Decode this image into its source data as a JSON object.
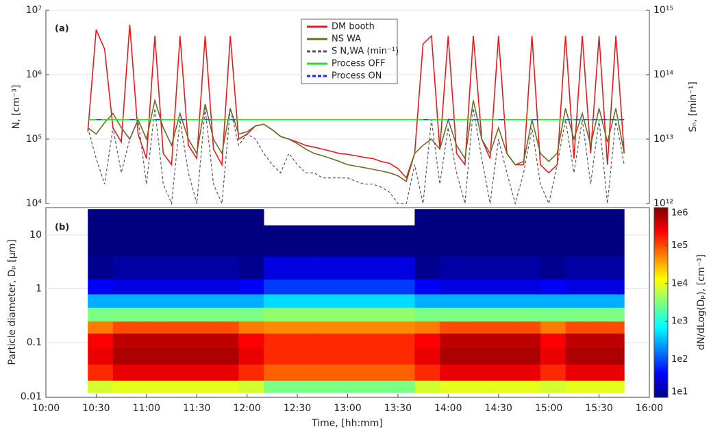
{
  "chart_data": [
    {
      "type": "line",
      "label": "(a)",
      "ylabel": "N, [cm⁻³]",
      "y2label": "Sₙ, [min⁻¹]",
      "log_y": true,
      "grid": true,
      "legend": "upper center",
      "xlim": [
        600,
        960
      ],
      "ylim": [
        10000,
        10000000
      ],
      "yticks": [
        {
          "value": 10000,
          "label": "10⁴"
        },
        {
          "value": 100000,
          "label": "10⁵"
        },
        {
          "value": 1000000,
          "label": "10⁶"
        },
        {
          "value": 10000000,
          "label": "10⁷"
        }
      ],
      "y2lim": [
        1000000000000.0,
        1000000000000000.0
      ],
      "y2ticks": [
        {
          "value": 1000000000000.0,
          "label": "10¹²"
        },
        {
          "value": 10000000000000.0,
          "label": "10¹³"
        },
        {
          "value": 100000000000000.0,
          "label": "10¹⁴"
        },
        {
          "value": 1000000000000000.0,
          "label": "10¹⁵"
        }
      ],
      "x": [
        625,
        630,
        635,
        640,
        645,
        650,
        655,
        660,
        665,
        670,
        675,
        680,
        685,
        690,
        695,
        700,
        705,
        710,
        715,
        720,
        725,
        730,
        735,
        740,
        745,
        750,
        755,
        760,
        765,
        770,
        775,
        780,
        785,
        790,
        795,
        800,
        805,
        810,
        815,
        820,
        825,
        830,
        835,
        840,
        845,
        850,
        855,
        860,
        865,
        870,
        875,
        880,
        885,
        890,
        895,
        900,
        905,
        910,
        915,
        920,
        925,
        930,
        935,
        940,
        945
      ],
      "series": [
        {
          "name": "DM booth",
          "color": "#e8191c",
          "values": [
            130000,
            5000000,
            2500000,
            150000,
            90000,
            6000000,
            120000,
            50000,
            4000000,
            60000,
            40000,
            4000000,
            80000,
            50000,
            4000000,
            70000,
            40000,
            4000000,
            100000,
            120000,
            160000,
            170000,
            140000,
            110000,
            100000,
            90000,
            80000,
            75000,
            70000,
            65000,
            60000,
            58000,
            55000,
            52000,
            50000,
            45000,
            42000,
            35000,
            25000,
            60000,
            3000000,
            4000000,
            70000,
            4000000,
            60000,
            40000,
            4000000,
            100000,
            50000,
            4000000,
            60000,
            40000,
            40000,
            4000000,
            40000,
            30000,
            40000,
            4000000,
            50000,
            4000000,
            60000,
            4000000,
            40000,
            4000000,
            60000
          ]
        },
        {
          "name": "NS WA",
          "color": "#6b6b2a",
          "values": [
            150000,
            120000,
            180000,
            250000,
            150000,
            100000,
            200000,
            100000,
            400000,
            150000,
            80000,
            250000,
            100000,
            60000,
            350000,
            100000,
            60000,
            300000,
            120000,
            130000,
            160000,
            170000,
            140000,
            110000,
            100000,
            85000,
            70000,
            60000,
            55000,
            50000,
            45000,
            40000,
            38000,
            36000,
            34000,
            32000,
            30000,
            27000,
            22000,
            60000,
            80000,
            100000,
            70000,
            200000,
            80000,
            50000,
            400000,
            100000,
            60000,
            150000,
            60000,
            40000,
            45000,
            200000,
            60000,
            45000,
            60000,
            300000,
            100000,
            250000,
            80000,
            300000,
            90000,
            300000,
            60000
          ]
        },
        {
          "name": "S N,WA (min⁻¹)",
          "color": "#555555",
          "dash": true,
          "axis": "y2",
          "values": [
            15000000000000.0,
            5000000000000.0,
            2000000000000.0,
            15000000000000.0,
            3000000000000.0,
            10000000000000.0,
            20000000000000.0,
            2000000000000.0,
            30000000000000.0,
            2000000000000.0,
            1000000000000.0,
            20000000000000.0,
            3000000000000.0,
            1000000000000.0,
            30000000000000.0,
            2000000000000.0,
            1000000000000.0,
            30000000000000.0,
            8000000000000.0,
            12000000000000.0,
            10000000000000.0,
            6000000000000.0,
            4000000000000.0,
            3000000000000.0,
            6000000000000.0,
            4000000000000.0,
            3000000000000.0,
            3000000000000.0,
            2500000000000.0,
            2500000000000.0,
            2500000000000.0,
            2500000000000.0,
            2200000000000.0,
            2000000000000.0,
            2000000000000.0,
            1800000000000.0,
            1500000000000.0,
            1000000000000.0,
            1000000000000.0,
            4000000000000.0,
            1000000000000.0,
            20000000000000.0,
            2000000000000.0,
            15000000000000.0,
            3000000000000.0,
            1000000000000.0,
            30000000000000.0,
            5000000000000.0,
            1000000000000.0,
            10000000000000.0,
            3000000000000.0,
            1000000000000.0,
            3000000000000.0,
            15000000000000.0,
            2000000000000.0,
            1000000000000.0,
            4000000000000.0,
            20000000000000.0,
            3000000000000.0,
            20000000000000.0,
            2000000000000.0,
            20000000000000.0,
            1000000000000.0,
            20000000000000.0,
            4000000000000.0
          ]
        },
        {
          "name": "Process OFF",
          "color": "#22e022",
          "values": [
            200000,
            200000,
            200000,
            200000,
            200000,
            200000,
            200000,
            200000,
            200000,
            200000,
            200000,
            200000,
            200000,
            200000,
            200000,
            200000,
            200000,
            200000,
            200000,
            200000,
            200000,
            200000,
            200000,
            200000,
            200000,
            200000,
            200000,
            200000,
            200000,
            200000,
            200000,
            200000,
            200000,
            200000,
            200000,
            200000,
            200000,
            200000,
            200000,
            200000,
            200000,
            200000,
            200000,
            200000,
            200000,
            200000,
            200000,
            200000,
            200000,
            200000,
            200000,
            200000,
            200000,
            200000,
            200000,
            200000,
            200000,
            200000,
            200000,
            200000,
            200000,
            200000,
            200000,
            200000,
            200000
          ]
        },
        {
          "name": "Process ON",
          "color": "#1a2ee0",
          "dash": true,
          "values": [
            null,
            200000,
            200000,
            null,
            null,
            200000,
            200000,
            null,
            200000,
            200000,
            null,
            200000,
            200000,
            null,
            200000,
            200000,
            null,
            200000,
            200000,
            null,
            null,
            null,
            null,
            null,
            null,
            null,
            null,
            null,
            null,
            null,
            null,
            null,
            null,
            null,
            null,
            null,
            null,
            null,
            null,
            null,
            200000,
            200000,
            null,
            200000,
            200000,
            null,
            200000,
            200000,
            null,
            200000,
            200000,
            null,
            null,
            200000,
            200000,
            null,
            null,
            200000,
            200000,
            200000,
            200000,
            200000,
            200000,
            200000,
            200000
          ]
        }
      ]
    },
    {
      "type": "heatmap",
      "label": "(b)",
      "ylabel": "Particle diameter, Dₚ [μm]",
      "xlabel": "Time, [hh:mm]",
      "colorbar_label": "dN/dLog(Dₚ), [cm⁻³]",
      "log_y": true,
      "log_color": true,
      "colormap": "jet",
      "xlim": [
        600,
        960
      ],
      "xticks": [
        {
          "value": 600,
          "label": "10:00"
        },
        {
          "value": 630,
          "label": "10:30"
        },
        {
          "value": 660,
          "label": "11:00"
        },
        {
          "value": 690,
          "label": "11:30"
        },
        {
          "value": 720,
          "label": "12:00"
        },
        {
          "value": 750,
          "label": "12:30"
        },
        {
          "value": 780,
          "label": "13:00"
        },
        {
          "value": 810,
          "label": "13:30"
        },
        {
          "value": 840,
          "label": "14:00"
        },
        {
          "value": 870,
          "label": "14:30"
        },
        {
          "value": 900,
          "label": "15:00"
        },
        {
          "value": 930,
          "label": "15:30"
        },
        {
          "value": 960,
          "label": "16:00"
        }
      ],
      "ylim": [
        0.0097,
        32
      ],
      "yticks": [
        0.01,
        0.1,
        1,
        10
      ],
      "clim": [
        10,
        1000000
      ],
      "cticks": [
        {
          "value": 10,
          "label": "1e1"
        },
        {
          "value": 100,
          "label": "1e2"
        },
        {
          "value": 1000,
          "label": "1e3"
        },
        {
          "value": 10000,
          "label": "1e4"
        },
        {
          "value": 100000,
          "label": "1e5"
        },
        {
          "value": 1000000,
          "label": "1e6"
        }
      ],
      "x_edges": [
        625,
        640,
        655,
        670,
        685,
        700,
        715,
        730,
        745,
        760,
        775,
        790,
        805,
        820,
        835,
        850,
        865,
        880,
        895,
        910,
        925,
        940,
        945
      ],
      "y_edges": [
        0.012,
        0.02,
        0.04,
        0.08,
        0.15,
        0.25,
        0.45,
        0.8,
        1.5,
        4,
        15,
        30
      ],
      "z": [
        [
          8000,
          150000,
          300000,
          250000,
          60000,
          3000,
          300,
          40,
          12,
          10,
          10
        ],
        [
          10000,
          300000,
          600000,
          500000,
          100000,
          3000,
          300,
          30,
          15,
          10,
          10
        ],
        [
          10000,
          300000,
          600000,
          500000,
          100000,
          3000,
          300,
          30,
          15,
          10,
          10
        ],
        [
          10000,
          300000,
          600000,
          500000,
          100000,
          3000,
          300,
          30,
          15,
          10,
          10
        ],
        [
          10000,
          300000,
          600000,
          500000,
          100000,
          3000,
          300,
          30,
          15,
          10,
          10
        ],
        [
          10000,
          300000,
          600000,
          500000,
          100000,
          3000,
          300,
          30,
          15,
          10,
          10
        ],
        [
          8000,
          150000,
          300000,
          250000,
          60000,
          3000,
          300,
          40,
          12,
          10,
          10
        ],
        [
          3000,
          80000,
          150000,
          150000,
          50000,
          4000,
          500,
          80,
          30,
          10,
          null
        ],
        [
          3000,
          80000,
          150000,
          150000,
          50000,
          4000,
          500,
          80,
          30,
          10,
          null
        ],
        [
          3000,
          80000,
          150000,
          150000,
          50000,
          4000,
          500,
          80,
          30,
          10,
          null
        ],
        [
          3000,
          80000,
          150000,
          150000,
          50000,
          4000,
          500,
          80,
          30,
          10,
          null
        ],
        [
          3000,
          80000,
          150000,
          150000,
          50000,
          4000,
          500,
          80,
          30,
          10,
          null
        ],
        [
          3000,
          80000,
          150000,
          150000,
          50000,
          4000,
          500,
          80,
          30,
          10,
          null
        ],
        [
          8000,
          150000,
          300000,
          250000,
          60000,
          3000,
          300,
          40,
          12,
          10,
          10
        ],
        [
          10000,
          300000,
          600000,
          500000,
          100000,
          3000,
          300,
          30,
          15,
          10,
          10
        ],
        [
          10000,
          300000,
          600000,
          500000,
          100000,
          3000,
          300,
          30,
          15,
          10,
          10
        ],
        [
          10000,
          300000,
          600000,
          500000,
          100000,
          3000,
          300,
          30,
          15,
          10,
          10
        ],
        [
          10000,
          300000,
          600000,
          500000,
          100000,
          3000,
          300,
          30,
          15,
          10,
          10
        ],
        [
          8000,
          150000,
          300000,
          250000,
          60000,
          3000,
          300,
          40,
          12,
          10,
          10
        ],
        [
          10000,
          300000,
          600000,
          500000,
          100000,
          3000,
          300,
          30,
          15,
          10,
          10
        ],
        [
          10000,
          300000,
          600000,
          500000,
          100000,
          3000,
          300,
          30,
          15,
          10,
          10
        ],
        [
          10000,
          300000,
          600000,
          500000,
          100000,
          3000,
          300,
          30,
          15,
          10,
          10
        ]
      ]
    }
  ]
}
